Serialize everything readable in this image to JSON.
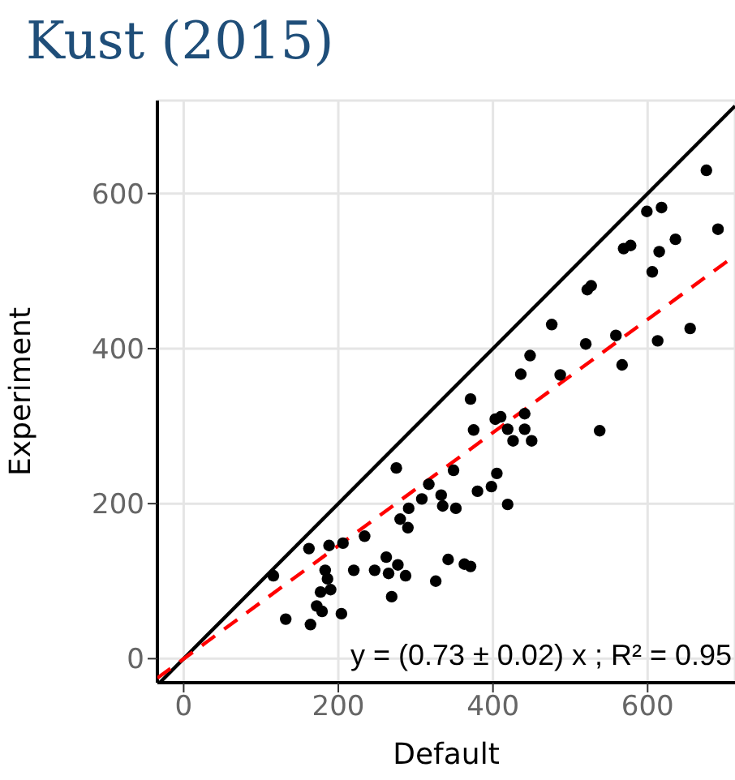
{
  "chart_data": {
    "type": "scatter",
    "title": "Kust (2015)",
    "xlabel": "Default",
    "ylabel": "Experiment",
    "xlim": [
      -34,
      713
    ],
    "ylim": [
      -31,
      720
    ],
    "xticks": [
      0,
      200,
      400,
      600
    ],
    "yticks": [
      0,
      200,
      400,
      600
    ],
    "grid": true,
    "legend": false,
    "marker": "circle",
    "annotations": [
      "y = (0.73 ± 0.02) x ; R² = 0.95"
    ],
    "series": [
      {
        "type": "line",
        "color": "#000000",
        "line_style": "solid",
        "marker": "none",
        "x": [
          -31,
          713
        ],
        "values": [
          -31,
          713
        ]
      },
      {
        "type": "line",
        "color": "#ff0000",
        "line_style": "dashed",
        "marker": "none",
        "x": [
          -34,
          713
        ],
        "values": [
          -25,
          520
        ]
      },
      {
        "color": "#000000",
        "x": [
          371,
          375,
          275,
          349,
          317,
          308,
          333,
          335,
          352,
          291,
          280,
          290,
          380,
          398,
          405,
          419,
          403,
          410,
          419,
          441,
          441,
          426,
          450,
          436,
          487,
          538,
          234,
          206,
          188,
          162,
          116,
          183,
          186,
          190,
          177,
          172,
          179,
          204,
          132,
          164,
          220,
          247,
          262,
          277,
          265,
          287,
          269,
          326,
          342,
          363,
          371,
          676,
          599,
          618,
          691,
          636,
          569,
          578,
          615,
          606,
          522,
          527,
          476,
          448,
          520,
          559,
          567,
          613,
          655
        ],
        "values": [
          335,
          295,
          246,
          243,
          225,
          206,
          211,
          197,
          194,
          194,
          180,
          169,
          216,
          222,
          239,
          199,
          309,
          312,
          296,
          316,
          296,
          281,
          281,
          367,
          366,
          294,
          158,
          149,
          146,
          142,
          107,
          114,
          103,
          89,
          86,
          68,
          61,
          58,
          51,
          44,
          114,
          114,
          131,
          121,
          110,
          107,
          80,
          100,
          128,
          122,
          119,
          630,
          577,
          582,
          554,
          541,
          529,
          533,
          525,
          499,
          476,
          481,
          431,
          391,
          406,
          417,
          379,
          410,
          426
        ]
      }
    ]
  }
}
